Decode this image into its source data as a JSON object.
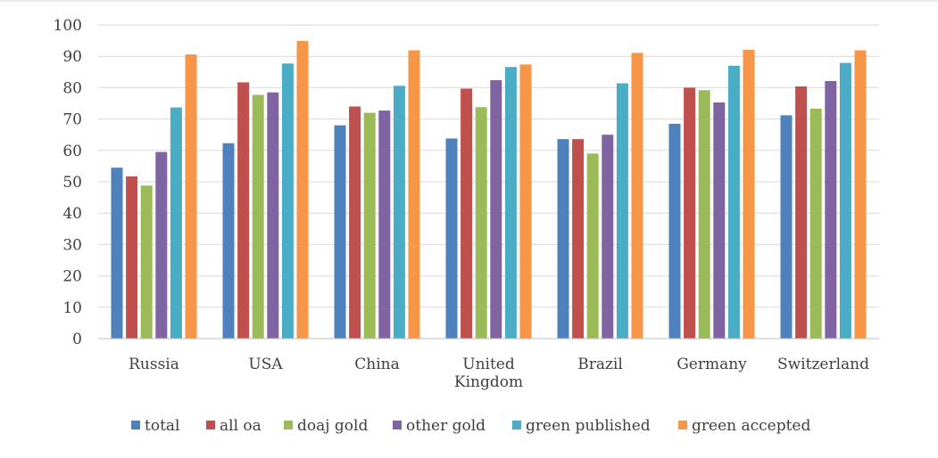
{
  "chart_data": {
    "type": "bar",
    "categories": [
      [
        "Russia"
      ],
      [
        "USA"
      ],
      [
        "China"
      ],
      [
        "United",
        "Kingdom"
      ],
      [
        "Brazil"
      ],
      [
        "Germany"
      ],
      [
        "Switzerland"
      ]
    ],
    "series": [
      {
        "name": "total",
        "color": "#4f81bd",
        "values": [
          54.5,
          62.3,
          68.0,
          63.8,
          63.6,
          68.5,
          71.2
        ]
      },
      {
        "name": "all oa",
        "color": "#c0504d",
        "values": [
          51.7,
          81.7,
          74.0,
          79.7,
          63.6,
          80.0,
          80.4
        ]
      },
      {
        "name": "doaj gold",
        "color": "#9bbb59",
        "values": [
          48.8,
          77.7,
          72.0,
          73.8,
          59.0,
          79.2,
          73.3
        ]
      },
      {
        "name": "other gold",
        "color": "#8064a2",
        "values": [
          59.5,
          78.5,
          72.7,
          82.4,
          65.0,
          75.3,
          82.1
        ]
      },
      {
        "name": "green published",
        "color": "#4bacc6",
        "values": [
          73.7,
          87.7,
          80.6,
          86.6,
          81.4,
          87.0,
          87.9
        ]
      },
      {
        "name": "green accepted",
        "color": "#f79646",
        "values": [
          90.6,
          94.9,
          91.9,
          87.4,
          91.1,
          92.1,
          91.9
        ]
      }
    ],
    "title": "",
    "xlabel": "",
    "ylabel": "",
    "ylim": [
      0,
      100
    ],
    "yticks": [
      0,
      10,
      20,
      30,
      40,
      50,
      60,
      70,
      80,
      90,
      100
    ],
    "grid": true,
    "legend": "bottom"
  }
}
